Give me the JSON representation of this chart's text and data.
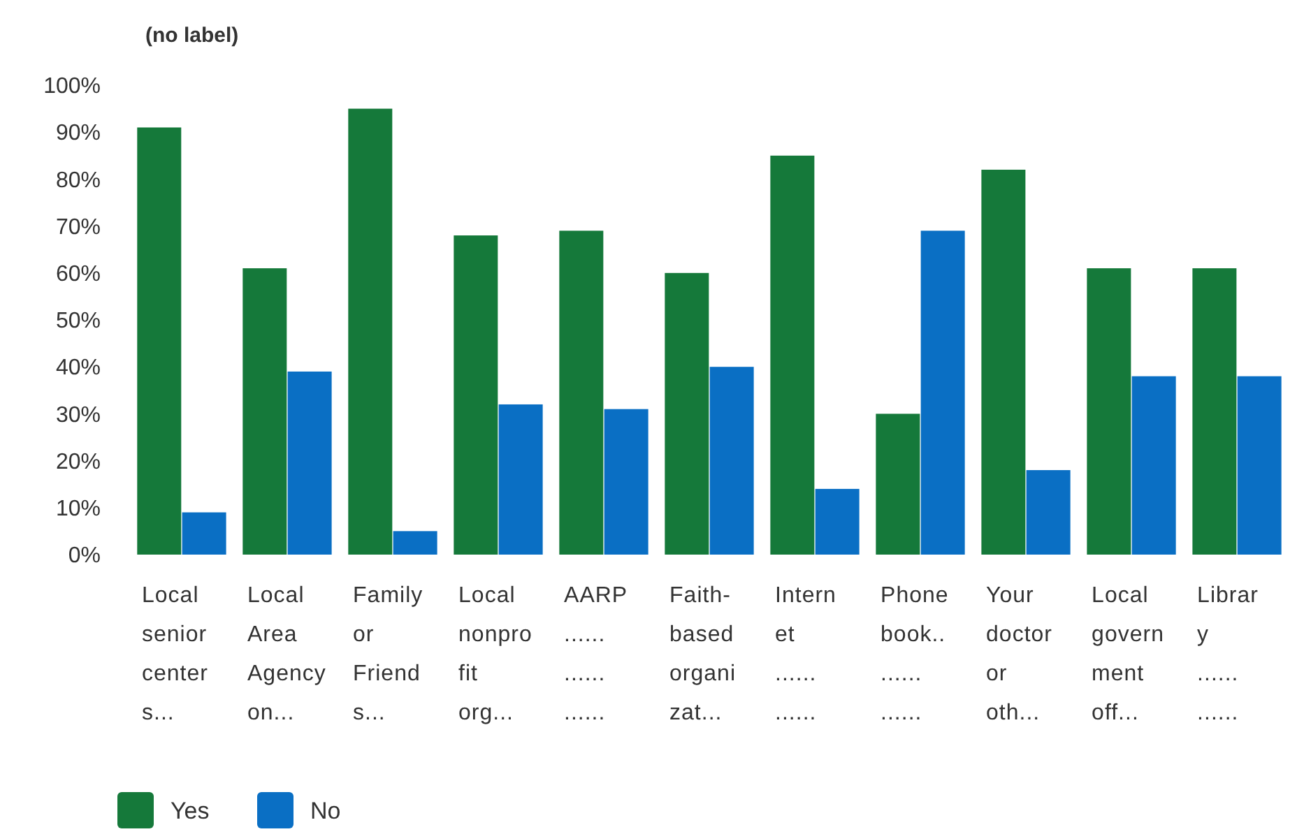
{
  "chart_data": {
    "type": "bar",
    "title": "(no label)",
    "categories": [
      "Local\nsenior\ncenter\ns...",
      "Local\nArea\nAgency\non...",
      "Family\nor\nFriend\ns...",
      "Local\nnonpro\nfit\norg...",
      "AARP\n......\n......\n......",
      "Faith-\nbased\norgani\nzat...",
      "Intern\net\n......\n......",
      "Phone\nbook..\n......\n......",
      "Your\ndoctor\nor\noth...",
      "Local\ngovern\nment\noff...",
      "Librar\ny\n......\n......"
    ],
    "series": [
      {
        "name": "Yes",
        "color": "#15793a",
        "values": [
          91,
          61,
          95,
          68,
          69,
          60,
          85,
          30,
          82,
          61,
          61
        ]
      },
      {
        "name": "No",
        "color": "#0a6fc4",
        "values": [
          9,
          39,
          5,
          32,
          31,
          40,
          14,
          69,
          18,
          38,
          38
        ]
      }
    ],
    "ylim": [
      0,
      100
    ],
    "yticks": [
      {
        "value": 0,
        "label": "0%"
      },
      {
        "value": 10,
        "label": "10%"
      },
      {
        "value": 20,
        "label": "20%"
      },
      {
        "value": 30,
        "label": "30%"
      },
      {
        "value": 40,
        "label": "40%"
      },
      {
        "value": 50,
        "label": "50%"
      },
      {
        "value": 60,
        "label": "60%"
      },
      {
        "value": 70,
        "label": "70%"
      },
      {
        "value": 80,
        "label": "80%"
      },
      {
        "value": 90,
        "label": "90%"
      },
      {
        "value": 100,
        "label": "100%"
      }
    ],
    "legend": "bottom left"
  }
}
